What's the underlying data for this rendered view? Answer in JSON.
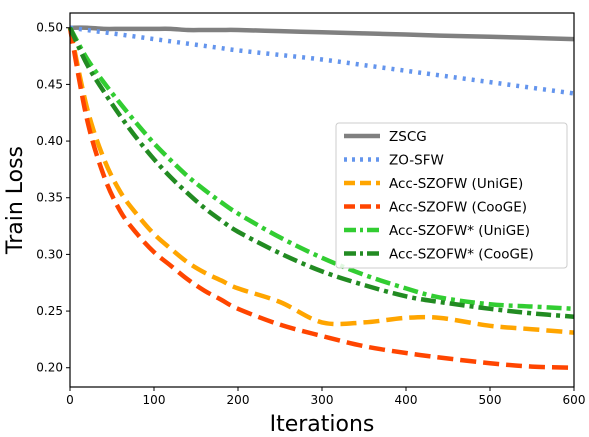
{
  "chart_data": {
    "type": "line",
    "title": "",
    "xlabel": "Iterations",
    "ylabel": "Train Loss",
    "xlim": [
      0,
      600
    ],
    "ylim": [
      0.183,
      0.513
    ],
    "xticks": [
      0,
      100,
      200,
      300,
      400,
      500,
      600
    ],
    "xtick_labels": [
      "0",
      "100",
      "200",
      "300",
      "400",
      "500",
      "600"
    ],
    "yticks": [
      0.2,
      0.25,
      0.3,
      0.35,
      0.4,
      0.45,
      0.5
    ],
    "ytick_labels": [
      "0.20",
      "0.25",
      "0.30",
      "0.35",
      "0.40",
      "0.45",
      "0.50"
    ],
    "grid": false,
    "legend_position": "center-right",
    "x": [
      0,
      20,
      40,
      60,
      80,
      100,
      120,
      140,
      160,
      180,
      200,
      250,
      300,
      350,
      400,
      440,
      500,
      550,
      600
    ],
    "series": [
      {
        "name": "ZSCG",
        "color": "#808080",
        "style": "solid",
        "values": [
          0.5,
          0.5,
          0.499,
          0.499,
          0.499,
          0.499,
          0.499,
          0.498,
          0.498,
          0.498,
          0.498,
          0.497,
          0.496,
          0.495,
          0.494,
          0.493,
          0.492,
          0.491,
          0.49
        ]
      },
      {
        "name": "ZO-SFW",
        "color": "#6495ed",
        "style": "dotted",
        "values": [
          0.5,
          0.498,
          0.496,
          0.494,
          0.492,
          0.49,
          0.488,
          0.486,
          0.484,
          0.482,
          0.48,
          0.476,
          0.472,
          0.467,
          0.462,
          0.458,
          0.452,
          0.447,
          0.442
        ]
      },
      {
        "name": "Acc-SZOFW (UniGE)",
        "color": "#ffa500",
        "style": "dashed",
        "values": [
          0.5,
          0.43,
          0.385,
          0.355,
          0.335,
          0.318,
          0.305,
          0.293,
          0.284,
          0.277,
          0.27,
          0.258,
          0.24,
          0.24,
          0.244,
          0.244,
          0.237,
          0.234,
          0.231
        ]
      },
      {
        "name": "Acc-SZOFW (CooGE)",
        "color": "#ff4500",
        "style": "dashed",
        "values": [
          0.5,
          0.42,
          0.37,
          0.338,
          0.318,
          0.302,
          0.29,
          0.278,
          0.268,
          0.26,
          0.252,
          0.238,
          0.228,
          0.219,
          0.213,
          0.209,
          0.204,
          0.201,
          0.2
        ]
      },
      {
        "name": "Acc-SZOFW* (UniGE)",
        "color": "#32cd32",
        "style": "dashdot",
        "values": [
          0.5,
          0.473,
          0.452,
          0.433,
          0.415,
          0.398,
          0.383,
          0.369,
          0.357,
          0.346,
          0.336,
          0.315,
          0.297,
          0.282,
          0.27,
          0.262,
          0.256,
          0.254,
          0.252
        ]
      },
      {
        "name": "Acc-SZOFW* (CooGE)",
        "color": "#228b22",
        "style": "dashdot",
        "values": [
          0.5,
          0.468,
          0.444,
          0.422,
          0.402,
          0.384,
          0.368,
          0.354,
          0.341,
          0.33,
          0.32,
          0.301,
          0.285,
          0.273,
          0.263,
          0.258,
          0.252,
          0.248,
          0.245
        ]
      }
    ]
  }
}
